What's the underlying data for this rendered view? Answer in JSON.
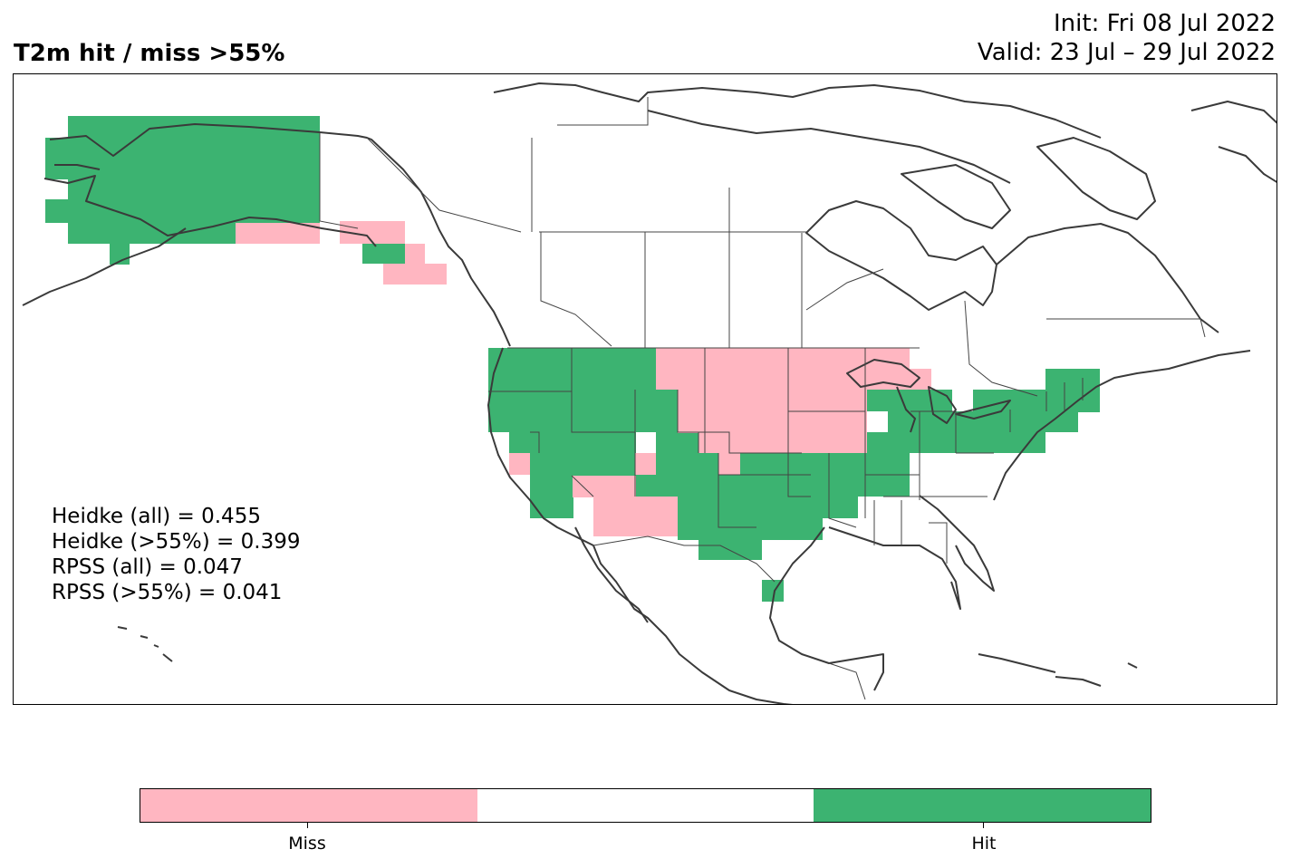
{
  "header": {
    "title": "T2m hit / miss  >55%",
    "init_line": "Init: Fri 08 Jul 2022",
    "valid_line": "Valid: 23 Jul – 29 Jul 2022"
  },
  "stats": [
    "Heidke (all) = 0.455",
    "Heidke (>55%) = 0.399",
    "RPSS (all) = 0.047",
    "RPSS (>55%) = 0.041"
  ],
  "colors": {
    "miss": "#ffb6c1",
    "neutral": "#ffffff",
    "hit": "#3cb371",
    "coast": "#3a3a3a"
  },
  "colorbar": {
    "labels": [
      "Miss",
      "Hit"
    ]
  }
}
